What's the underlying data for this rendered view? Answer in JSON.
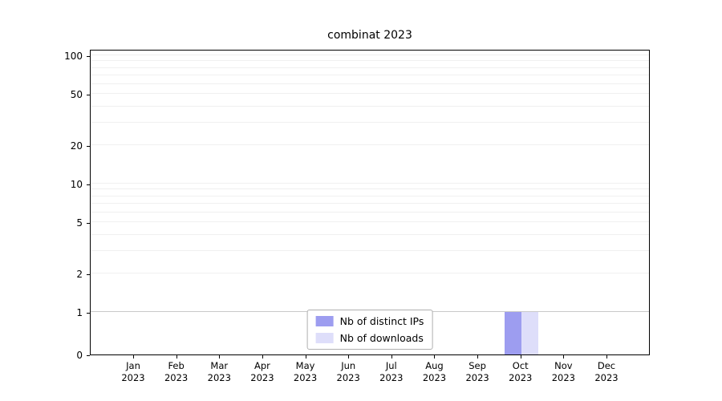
{
  "chart_data": {
    "type": "bar",
    "title": "combinat 2023",
    "categories": [
      {
        "month": "Jan",
        "year": "2023"
      },
      {
        "month": "Feb",
        "year": "2023"
      },
      {
        "month": "Mar",
        "year": "2023"
      },
      {
        "month": "Apr",
        "year": "2023"
      },
      {
        "month": "May",
        "year": "2023"
      },
      {
        "month": "Jun",
        "year": "2023"
      },
      {
        "month": "Jul",
        "year": "2023"
      },
      {
        "month": "Aug",
        "year": "2023"
      },
      {
        "month": "Sep",
        "year": "2023"
      },
      {
        "month": "Oct",
        "year": "2023"
      },
      {
        "month": "Nov",
        "year": "2023"
      },
      {
        "month": "Dec",
        "year": "2023"
      }
    ],
    "series": [
      {
        "name": "Nb of distinct IPs",
        "color": "#9d9df0",
        "values": [
          0,
          0,
          0,
          0,
          0,
          0,
          0,
          0,
          0,
          1,
          0,
          0
        ]
      },
      {
        "name": "Nb of downloads",
        "color": "#dedefa",
        "values": [
          0,
          0,
          0,
          0,
          0,
          0,
          0,
          0,
          0,
          1,
          0,
          0
        ]
      }
    ],
    "xlabel": "",
    "ylabel": "",
    "yscale": "symlog",
    "ylim": [
      0,
      110
    ],
    "y_ticks": [
      0,
      1,
      2,
      5,
      10,
      20,
      50,
      100
    ],
    "gridline_values": [
      1,
      2,
      3,
      4,
      5,
      6,
      7,
      8,
      9,
      10,
      20,
      30,
      40,
      50,
      60,
      70,
      80,
      90,
      100
    ],
    "grid": "on",
    "legend_position": "lower center"
  }
}
